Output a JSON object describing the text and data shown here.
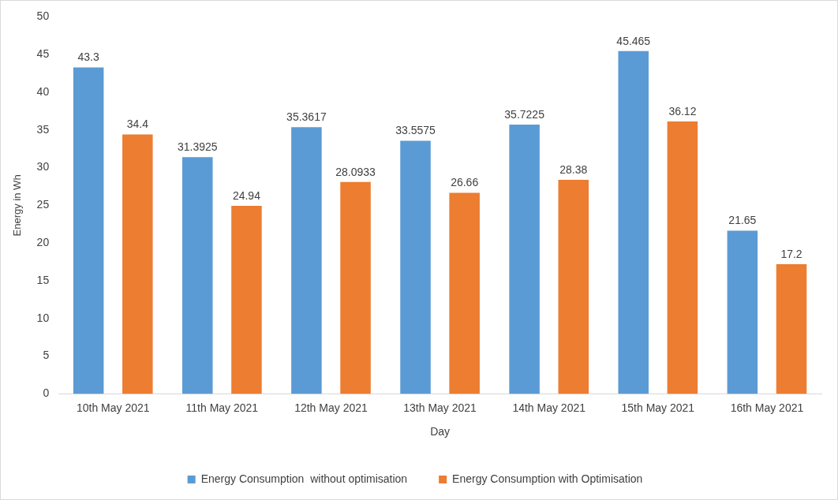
{
  "chart_data": {
    "type": "bar",
    "xlabel": "Day",
    "ylabel": "Energy in Wh",
    "categories": [
      "10th May 2021",
      "11th May 2021",
      "12th May 2021",
      "13th May 2021",
      "14th May 2021",
      "15th May 2021",
      "16th May 2021"
    ],
    "series": [
      {
        "name": "Energy Consumption  without optimisation",
        "color": "#5b9bd5",
        "values": [
          43.3,
          31.3925,
          35.3617,
          33.5575,
          35.7225,
          45.465,
          21.65
        ]
      },
      {
        "name": "Energy Consumption with Optimisation",
        "color": "#ed7d31",
        "values": [
          34.4,
          24.94,
          28.0933,
          26.66,
          28.38,
          36.12,
          17.2
        ]
      }
    ],
    "ylim": [
      0,
      50
    ],
    "yticks": [
      0,
      5,
      10,
      15,
      20,
      25,
      30,
      35,
      40,
      45,
      50
    ],
    "data_labels": true,
    "legend": "bottom",
    "grid": false
  }
}
